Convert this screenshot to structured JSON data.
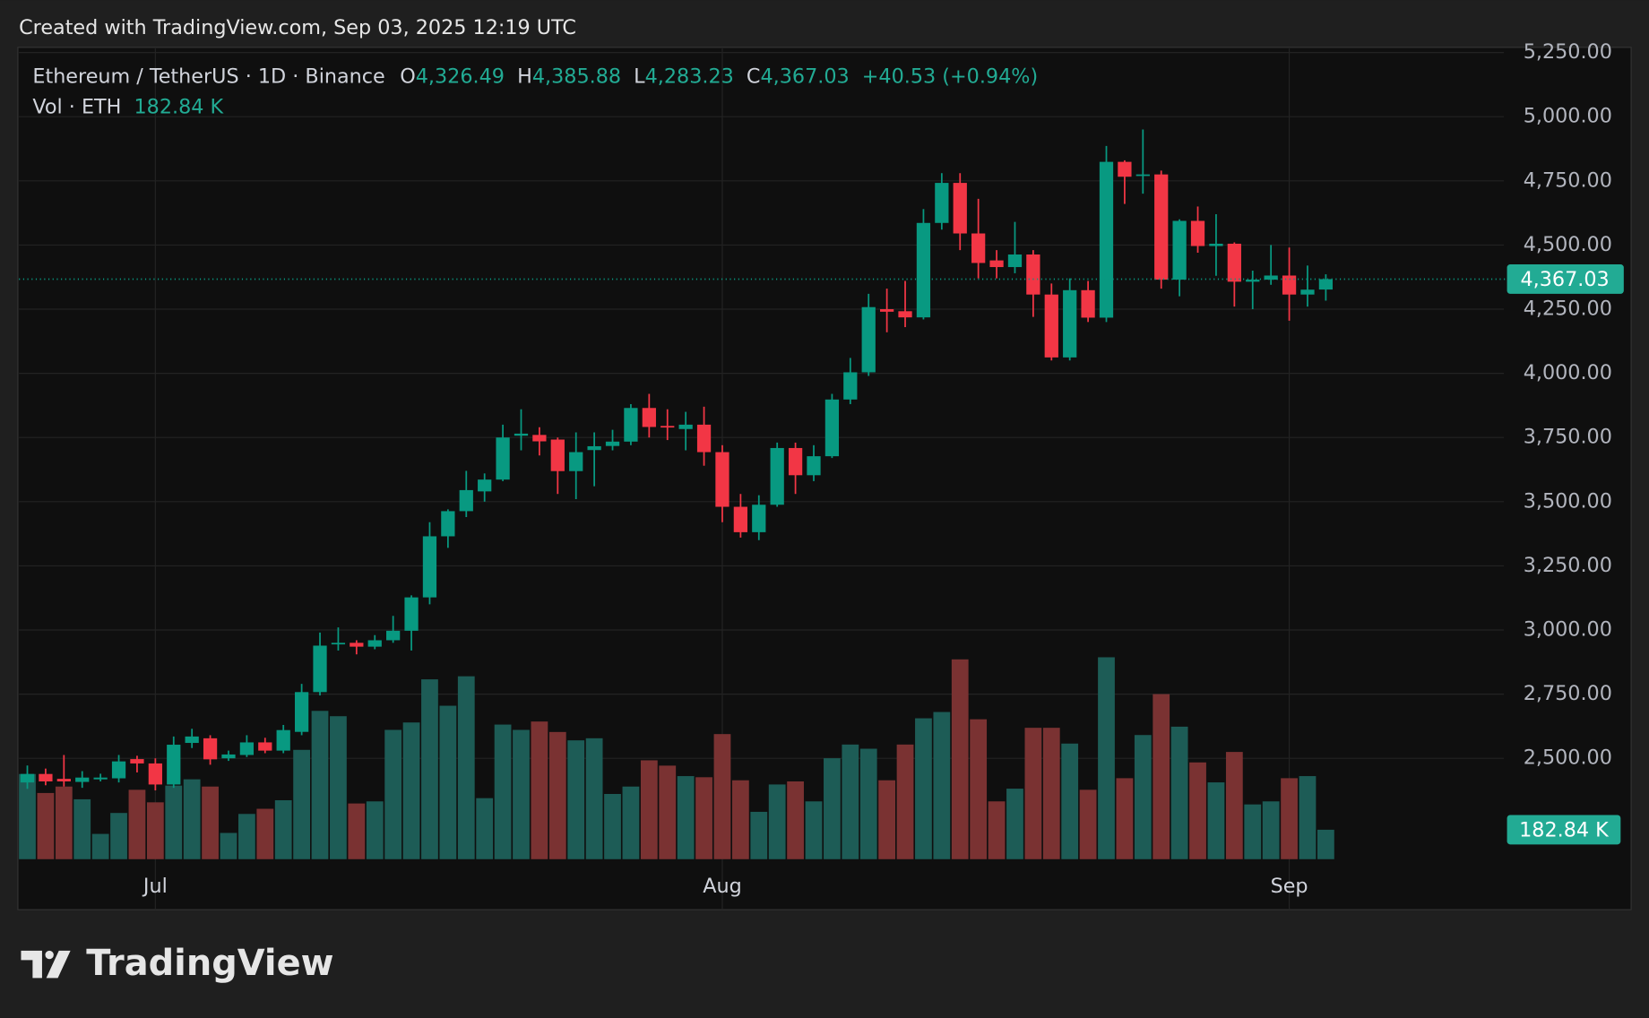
{
  "header": {
    "caption": "Created with TradingView.com, Sep 03, 2025 12:19 UTC"
  },
  "legend": {
    "symbol": "Ethereum / TetherUS · 1D · Binance",
    "open_label": "O",
    "open": "4,326.49",
    "high_label": "H",
    "high": "4,385.88",
    "low_label": "L",
    "low": "4,283.23",
    "close_label": "C",
    "close": "4,367.03",
    "change": "+40.53 (+0.94%)",
    "volume_title": "Vol · ETH",
    "volume": "182.84 K"
  },
  "chart_data": {
    "type": "candlestick",
    "categories": [
      null,
      null,
      null,
      null,
      null,
      null,
      null,
      "Jul",
      null,
      null,
      null,
      null,
      null,
      null,
      null,
      null,
      null,
      null,
      null,
      null,
      null,
      null,
      null,
      null,
      null,
      null,
      null,
      null,
      null,
      null,
      null,
      null,
      null,
      null,
      null,
      null,
      null,
      null,
      "Aug",
      null,
      null,
      null,
      null,
      null,
      null,
      null,
      null,
      null,
      null,
      null,
      null,
      null,
      null,
      null,
      null,
      null,
      null,
      null,
      null,
      null,
      null,
      null,
      null,
      null,
      null,
      null,
      null,
      null,
      null,
      "Sep",
      null,
      null
    ],
    "open": [
      2406,
      2439,
      2420,
      2408,
      2418,
      2422,
      2497,
      2480,
      2398,
      2560,
      2578,
      2500,
      2513,
      2562,
      2530,
      2603,
      2758,
      2945,
      2950,
      2935,
      2960,
      2997,
      3127,
      3365,
      3463,
      3540,
      3586,
      3757,
      3760,
      3742,
      3619,
      3701,
      3717,
      3734,
      3865,
      3795,
      3783,
      3800,
      3693,
      3480,
      3381,
      3488,
      3709,
      3603,
      3677,
      3898,
      4004,
      4250,
      4242,
      4218,
      4586,
      4742,
      4545,
      4440,
      4414,
      4463,
      4307,
      4062,
      4324,
      4217,
      4824,
      4770,
      4775,
      4365,
      4594,
      4496,
      4505,
      4357,
      4365,
      4381,
      4307,
      4326.49
    ],
    "high": [
      2472,
      2460,
      2513,
      2450,
      2440,
      2513,
      2510,
      2500,
      2585,
      2615,
      2590,
      2530,
      2590,
      2580,
      2630,
      2790,
      2990,
      3010,
      2960,
      2980,
      3055,
      3135,
      3420,
      3470,
      3620,
      3610,
      3800,
      3860,
      3790,
      3750,
      3770,
      3770,
      3780,
      3880,
      3920,
      3860,
      3850,
      3870,
      3720,
      3530,
      3525,
      3730,
      3730,
      3720,
      3920,
      4060,
      4310,
      4330,
      4360,
      4640,
      4780,
      4780,
      4680,
      4480,
      4590,
      4480,
      4350,
      4370,
      4360,
      4886,
      4830,
      4950,
      4790,
      4600,
      4650,
      4620,
      4510,
      4400,
      4500,
      4490,
      4420,
      4385.88
    ],
    "low": [
      2381,
      2395,
      2390,
      2385,
      2410,
      2406,
      2445,
      2375,
      2385,
      2540,
      2475,
      2490,
      2505,
      2520,
      2520,
      2590,
      2745,
      2920,
      2905,
      2925,
      2950,
      2920,
      3100,
      3320,
      3440,
      3500,
      3580,
      3700,
      3680,
      3530,
      3510,
      3560,
      3700,
      3720,
      3750,
      3740,
      3700,
      3640,
      3420,
      3360,
      3350,
      3480,
      3530,
      3580,
      3670,
      3880,
      3990,
      4160,
      4180,
      4210,
      4560,
      4480,
      4370,
      4370,
      4390,
      4220,
      4050,
      4050,
      4200,
      4200,
      4660,
      4700,
      4330,
      4300,
      4470,
      4380,
      4260,
      4250,
      4345,
      4205,
      4260,
      4283.23
    ],
    "close": [
      2439,
      2410,
      2410,
      2425,
      2425,
      2488,
      2480,
      2398,
      2553,
      2585,
      2496,
      2515,
      2562,
      2530,
      2610,
      2758,
      2939,
      2950,
      2935,
      2960,
      2997,
      3127,
      3365,
      3463,
      3545,
      3586,
      3750,
      3765,
      3735,
      3619,
      3693,
      3716,
      3734,
      3865,
      3791,
      3790,
      3800,
      3693,
      3480,
      3381,
      3488,
      3709,
      3603,
      3677,
      3898,
      4004,
      4258,
      4240,
      4218,
      4586,
      4742,
      4545,
      4430,
      4414,
      4463,
      4307,
      4062,
      4324,
      4217,
      4824,
      4766,
      4775,
      4365,
      4594,
      4496,
      4505,
      4357,
      4365,
      4381,
      4307,
      4326,
      4367.03
    ],
    "volume": [
      529,
      411,
      451,
      372,
      157,
      287,
      431,
      353,
      457,
      496,
      451,
      163,
      281,
      313,
      366,
      679,
      921,
      888,
      346,
      359,
      803,
      849,
      1117,
      953,
      1136,
      379,
      836,
      803,
      855,
      790,
      738,
      751,
      405,
      451,
      614,
      581,
      516,
      509,
      777,
      490,
      294,
      464,
      483,
      359,
      627,
      712,
      686,
      490,
      712,
      875,
      914,
      1241,
      869,
      359,
      438,
      816,
      816,
      718,
      431,
      1254,
      503,
      771,
      1025,
      823,
      601,
      477,
      666,
      340,
      359,
      503,
      516,
      182.84
    ],
    "up_color": "#089981",
    "down_color": "#f23645",
    "volume_up_color": "#1d5c56",
    "volume_down_color": "#7a3232",
    "ylim": [
      2107,
      5266
    ],
    "yticks": [
      {
        "value": 2500,
        "label": "2,500.00"
      },
      {
        "value": 2750,
        "label": "2,750.00"
      },
      {
        "value": 3000,
        "label": "3,000.00"
      },
      {
        "value": 3250,
        "label": "3,250.00"
      },
      {
        "value": 3500,
        "label": "3,500.00"
      },
      {
        "value": 3750,
        "label": "3,750.00"
      },
      {
        "value": 4000,
        "label": "4,000.00"
      },
      {
        "value": 4250,
        "label": "4,250.00"
      },
      {
        "value": 4500,
        "label": "4,500.00"
      },
      {
        "value": 4750,
        "label": "4,750.00"
      },
      {
        "value": 5000,
        "label": "5,000.00"
      },
      {
        "value": 5250,
        "label": "5,250.00"
      }
    ],
    "grid": true
  },
  "footer": {
    "brand": "TradingView"
  }
}
